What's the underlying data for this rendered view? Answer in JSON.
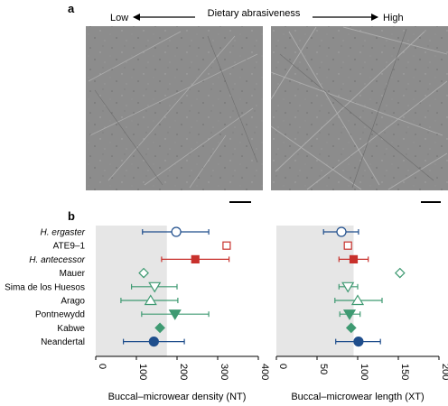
{
  "panel_a": {
    "label": "a",
    "arrow_left_label": "Low",
    "arrow_title": "Dietary abrasiveness",
    "arrow_right_label": "High",
    "micrographs": [
      "left-micrograph",
      "right-micrograph"
    ]
  },
  "panel_b": {
    "label": "b"
  },
  "colors": {
    "blue": "#1f4e8c",
    "red": "#c8312c",
    "green": "#3f9a72",
    "shade": "#e6e6e6",
    "image_gray": "#8a8a8a"
  },
  "chart_data": [
    {
      "type": "scatter",
      "xlabel": "Buccal–microwear density (NT)",
      "xlim": [
        0,
        400
      ],
      "xticks": [
        0,
        100,
        200,
        300,
        400
      ],
      "xtick_labels": [
        "0",
        "100",
        "200",
        "300",
        "400"
      ],
      "shaded_region": [
        0,
        175
      ],
      "categories": [
        "H. ergaster",
        "ATE9–1",
        "H. antecessor",
        "Mauer",
        "Sima de los Huesos",
        "Arago",
        "Pontnewydd",
        "Kabwe",
        "Neandertal"
      ],
      "italic_categories": [
        "H. ergaster",
        "H. antecessor"
      ],
      "points": [
        {
          "category": "H. ergaster",
          "mean": 198,
          "low": 115,
          "high": 278,
          "marker": "circle-open",
          "color": "blue"
        },
        {
          "category": "ATE9–1",
          "mean": 322,
          "low": null,
          "high": null,
          "marker": "square-open",
          "color": "red"
        },
        {
          "category": "H. antecessor",
          "mean": 245,
          "low": 162,
          "high": 328,
          "marker": "square-filled",
          "color": "red"
        },
        {
          "category": "Mauer",
          "mean": 118,
          "low": null,
          "high": null,
          "marker": "diamond-open",
          "color": "green"
        },
        {
          "category": "Sima de los Huesos",
          "mean": 145,
          "low": 88,
          "high": 200,
          "marker": "triangle-down-open",
          "color": "green"
        },
        {
          "category": "Arago",
          "mean": 135,
          "low": 62,
          "high": 202,
          "marker": "triangle-up-open",
          "color": "green"
        },
        {
          "category": "Pontnewydd",
          "mean": 195,
          "low": 113,
          "high": 278,
          "marker": "triangle-down-filled",
          "color": "green"
        },
        {
          "category": "Kabwe",
          "mean": 158,
          "low": null,
          "high": null,
          "marker": "diamond-filled",
          "color": "green"
        },
        {
          "category": "Neandertal",
          "mean": 143,
          "low": 68,
          "high": 218,
          "marker": "circle-filled",
          "color": "blue"
        }
      ]
    },
    {
      "type": "scatter",
      "xlabel": "Buccal–microwear length (XT)",
      "xlim": [
        0,
        200
      ],
      "xticks": [
        0,
        50,
        100,
        150,
        200
      ],
      "xtick_labels": [
        "0",
        "50",
        "100",
        "150",
        "200"
      ],
      "shaded_region": [
        0,
        95
      ],
      "categories": [
        "H. ergaster",
        "ATE9–1",
        "H. antecessor",
        "Mauer",
        "Sima de los Huesos",
        "Arago",
        "Pontnewydd",
        "Kabwe",
        "Neandertal"
      ],
      "points": [
        {
          "category": "H. ergaster",
          "mean": 80,
          "low": 58,
          "high": 101,
          "marker": "circle-open",
          "color": "blue"
        },
        {
          "category": "ATE9–1",
          "mean": 88,
          "low": null,
          "high": null,
          "marker": "square-open",
          "color": "red"
        },
        {
          "category": "H. antecessor",
          "mean": 95,
          "low": 77,
          "high": 113,
          "marker": "square-filled",
          "color": "red"
        },
        {
          "category": "Mauer",
          "mean": 152,
          "low": null,
          "high": null,
          "marker": "diamond-open",
          "color": "green"
        },
        {
          "category": "Sima de los Huesos",
          "mean": 88,
          "low": 77,
          "high": 100,
          "marker": "triangle-down-open",
          "color": "green"
        },
        {
          "category": "Arago",
          "mean": 100,
          "low": 72,
          "high": 130,
          "marker": "triangle-up-open",
          "color": "green"
        },
        {
          "category": "Pontnewydd",
          "mean": 90,
          "low": 78,
          "high": 103,
          "marker": "triangle-down-filled",
          "color": "green"
        },
        {
          "category": "Kabwe",
          "mean": 92,
          "low": null,
          "high": null,
          "marker": "diamond-filled",
          "color": "green"
        },
        {
          "category": "Neandertal",
          "mean": 101,
          "low": 73,
          "high": 128,
          "marker": "circle-filled",
          "color": "blue"
        }
      ]
    }
  ]
}
